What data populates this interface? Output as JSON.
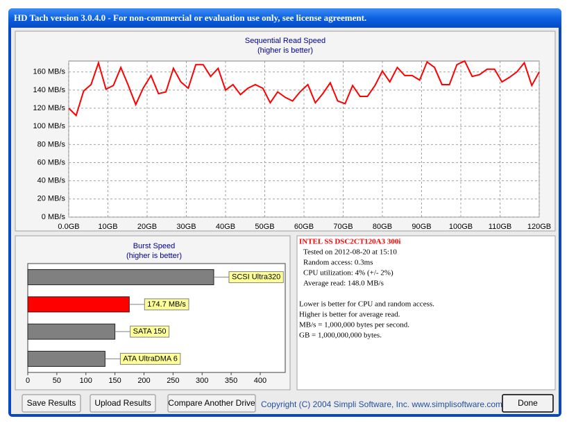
{
  "window": {
    "title": "HD Tach version 3.0.4.0  - For non-commercial or evaluation use only, see license agreement."
  },
  "chart_data": [
    {
      "type": "line",
      "title": "Sequential Read Speed",
      "subtitle": "(higher is better)",
      "color": "#ff0000",
      "grid": true,
      "x": [
        0,
        1.9,
        3.8,
        5.7,
        7.6,
        9.5,
        11.4,
        13.3,
        15.2,
        17.1,
        19.0,
        21.0,
        22.9,
        24.8,
        26.7,
        28.6,
        30.5,
        32.4,
        34.3,
        36.2,
        38.1,
        40.0,
        41.9,
        43.8,
        45.7,
        47.6,
        49.5,
        51.4,
        53.3,
        55.2,
        57.1,
        59.0,
        61.0,
        62.9,
        64.8,
        66.7,
        68.6,
        70.5,
        72.4,
        74.3,
        76.2,
        78.1,
        80.0,
        81.9,
        83.8,
        85.7,
        87.6,
        89.5,
        91.4,
        93.3,
        95.2,
        97.1,
        99.0,
        101.0,
        102.9,
        104.8,
        106.7,
        108.6,
        110.5,
        112.4,
        114.3,
        116.2,
        118.1,
        120.0
      ],
      "values": [
        120,
        112,
        139,
        146,
        170,
        141,
        145,
        165,
        145,
        124,
        142,
        156,
        136,
        138,
        164,
        149,
        142,
        168,
        168,
        155,
        164,
        140,
        146,
        135,
        142,
        146,
        142,
        126,
        138,
        132,
        128,
        138,
        146,
        126,
        136,
        148,
        128,
        125,
        145,
        133,
        133,
        145,
        161,
        149,
        165,
        156,
        156,
        151,
        171,
        165,
        146,
        146,
        168,
        172,
        155,
        157,
        163,
        163,
        149,
        154,
        160,
        170,
        145,
        160
      ],
      "xlim": [
        0,
        120
      ],
      "ylim": [
        0,
        172
      ],
      "xticks": [
        {
          "value": 0,
          "label": "0.0GB"
        },
        {
          "value": 10,
          "label": "10GB"
        },
        {
          "value": 20,
          "label": "20GB"
        },
        {
          "value": 30,
          "label": "30GB"
        },
        {
          "value": 40,
          "label": "40GB"
        },
        {
          "value": 50,
          "label": "50GB"
        },
        {
          "value": 60,
          "label": "60GB"
        },
        {
          "value": 70,
          "label": "70GB"
        },
        {
          "value": 80,
          "label": "80GB"
        },
        {
          "value": 90,
          "label": "90GB"
        },
        {
          "value": 100,
          "label": "100GB"
        },
        {
          "value": 110,
          "label": "110GB"
        },
        {
          "value": 120,
          "label": "120GB"
        }
      ],
      "yticks": [
        {
          "value": 0,
          "label": "0 MB/s"
        },
        {
          "value": 20,
          "label": "20 MB/s"
        },
        {
          "value": 40,
          "label": "40 MB/s"
        },
        {
          "value": 60,
          "label": "60 MB/s"
        },
        {
          "value": 80,
          "label": "80 MB/s"
        },
        {
          "value": 100,
          "label": "100 MB/s"
        },
        {
          "value": 120,
          "label": "120 MB/s"
        },
        {
          "value": 140,
          "label": "140 MB/s"
        },
        {
          "value": 160,
          "label": "160 MB/s"
        }
      ]
    },
    {
      "type": "hbar",
      "title": "Burst Speed",
      "subtitle": "(higher is better)",
      "categories": [
        "SCSI Ultra320",
        null,
        "SATA 150",
        "ATA UltraDMA 6"
      ],
      "values": [
        320,
        174.7,
        150,
        133
      ],
      "value_labels": [
        null,
        "174.7 MB/s",
        null,
        null
      ],
      "colors": [
        "#808080",
        "#ff0000",
        "#808080",
        "#808080"
      ],
      "xlim": [
        0,
        443
      ],
      "xticks": [
        0,
        50,
        100,
        150,
        200,
        250,
        300,
        350,
        400
      ]
    }
  ],
  "info": {
    "drive": "INTEL SS DSC2CT120A3 300i",
    "lines": [
      "Tested on 2012-08-20 at 15:10",
      "Random access: 0.3ms",
      "CPU utilization: 4% (+/- 2%)",
      "Average read: 148.0 MB/s"
    ],
    "notes": [
      "Lower is better for CPU and random access.",
      "Higher is better for average read.",
      "MB/s = 1,000,000 bytes per second.",
      "GB = 1,000,000,000 bytes."
    ]
  },
  "buttons": [
    "Save Results",
    "Upload Results",
    "Compare Another Drive",
    "Done"
  ],
  "footer": "Copyright (C) 2004 Simpli Software, Inc. www.simplisoftware.com"
}
